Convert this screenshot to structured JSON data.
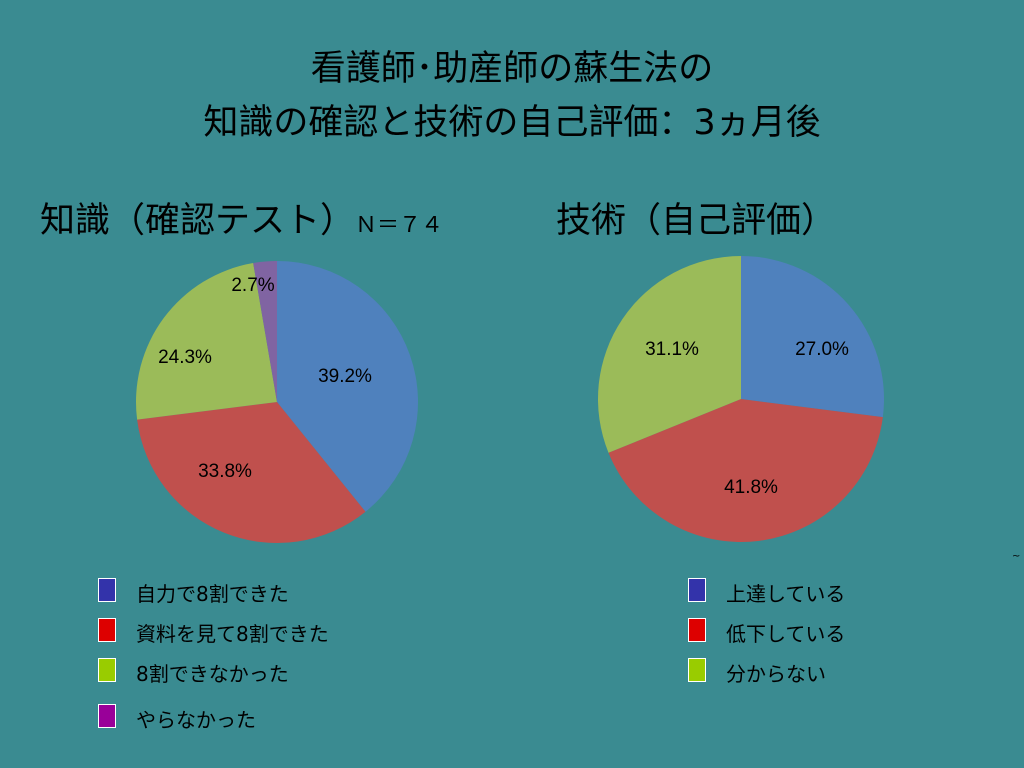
{
  "slide": {
    "title_line1": "看護師･助産師の蘇生法の",
    "title_line2": "知識の確認と技術の自己評価：3ヵ月後",
    "stray_mark": "~"
  },
  "chart_data": [
    {
      "type": "pie",
      "title": "知識（確認テスト）",
      "note": "Ｎ＝７４",
      "slices": [
        {
          "label": "自力で8割できた",
          "value": 39.2,
          "value_label": "39.2%",
          "color": "#4f81bd"
        },
        {
          "label": "資料を見て8割できた",
          "value": 33.8,
          "value_label": "33.8%",
          "color": "#c0504d"
        },
        {
          "label": "8割できなかった",
          "value": 24.3,
          "value_label": "24.3%",
          "color": "#9bbb59"
        },
        {
          "label": "やらなかった",
          "value": 2.7,
          "value_label": "2.7%",
          "color": "#8064a2"
        }
      ],
      "legend_colors": [
        "#3333aa",
        "#dd0000",
        "#99cc00",
        "#990099"
      ]
    },
    {
      "type": "pie",
      "title": "技術（自己評価）",
      "slices": [
        {
          "label": "上達している",
          "value": 27.0,
          "value_label": "27.0%",
          "color": "#4f81bd"
        },
        {
          "label": "低下している",
          "value": 41.8,
          "value_label": "41.8%",
          "color": "#c0504d"
        },
        {
          "label": "分からない",
          "value": 31.1,
          "value_label": "31.1%",
          "color": "#9bbb59"
        }
      ],
      "legend_colors": [
        "#3333aa",
        "#dd0000",
        "#99cc00"
      ]
    }
  ]
}
